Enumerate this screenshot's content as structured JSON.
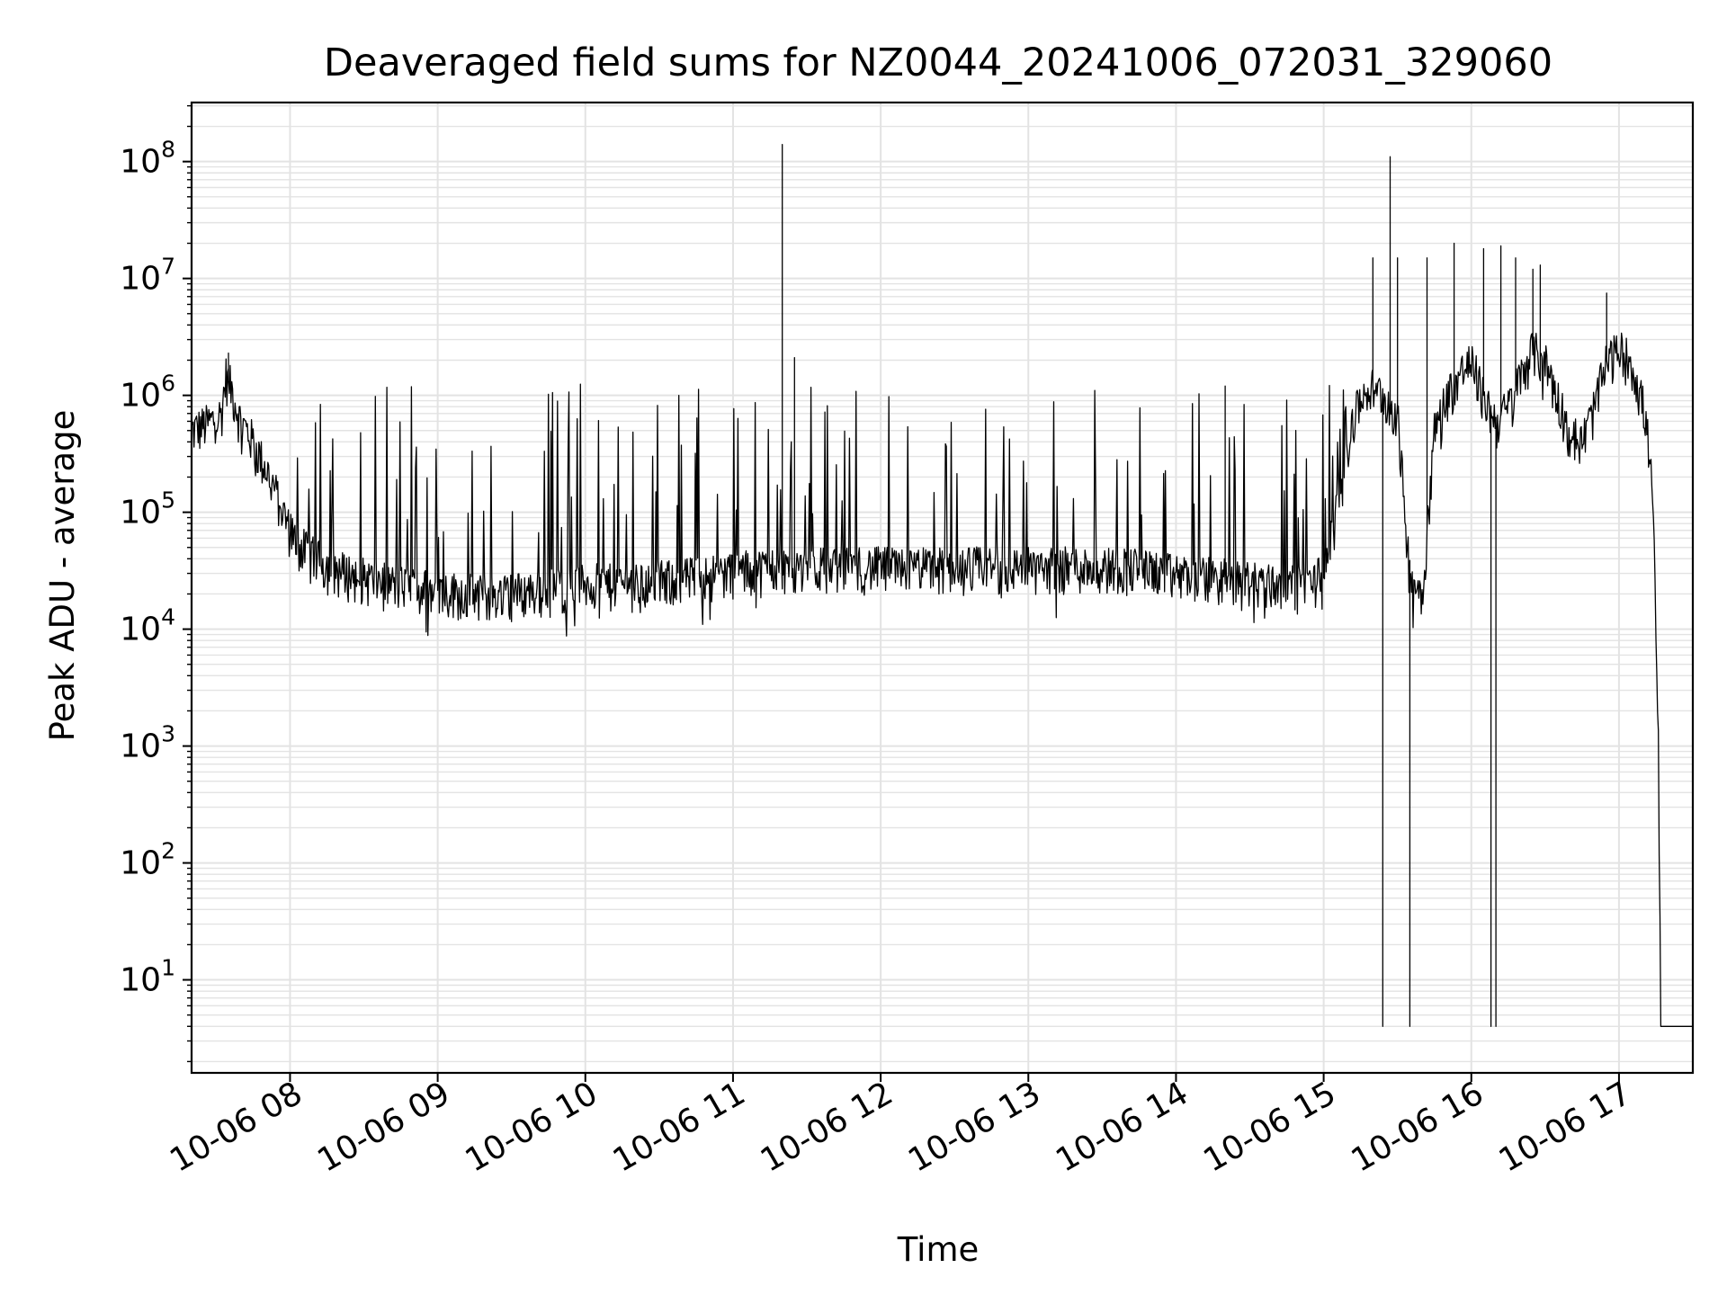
{
  "chart_data": {
    "type": "line",
    "title": "Deaveraged field sums for NZ0044_20241006_072031_329060",
    "xlabel": "Time",
    "ylabel": "Peak ADU - average",
    "xscale": "time",
    "yscale": "log",
    "grid": true,
    "legend": "none",
    "colors": {
      "line": "#000000",
      "grid": "#e3e3e3",
      "axes": "#000000"
    },
    "xlim": [
      "2024-10-06 07:20",
      "2024-10-06 17:30"
    ],
    "ylim": [
      1.6,
      320000000
    ],
    "x_tick_labels": [
      "10-06 08",
      "10-06 09",
      "10-06 10",
      "10-06 11",
      "10-06 12",
      "10-06 13",
      "10-06 14",
      "10-06 15",
      "10-06 16",
      "10-06 17"
    ],
    "x_ticks": [
      "2024-10-06 08:00",
      "2024-10-06 09:00",
      "2024-10-06 10:00",
      "2024-10-06 11:00",
      "2024-10-06 12:00",
      "2024-10-06 13:00",
      "2024-10-06 14:00",
      "2024-10-06 15:00",
      "2024-10-06 16:00",
      "2024-10-06 17:00"
    ],
    "y_ticks": [
      {
        "value": 10,
        "base": "10",
        "exp": "1"
      },
      {
        "value": 100,
        "base": "10",
        "exp": "2"
      },
      {
        "value": 1000,
        "base": "10",
        "exp": "3"
      },
      {
        "value": 10000,
        "base": "10",
        "exp": "4"
      },
      {
        "value": 100000,
        "base": "10",
        "exp": "5"
      },
      {
        "value": 1000000,
        "base": "10",
        "exp": "6"
      },
      {
        "value": 10000000,
        "base": "10",
        "exp": "7"
      },
      {
        "value": 100000000,
        "base": "10",
        "exp": "8"
      }
    ],
    "series": [
      {
        "x": [
          "2024-10-06 07:20",
          "2024-10-06 07:24",
          "2024-10-06 07:28",
          "2024-10-06 07:32",
          "2024-10-06 07:34",
          "2024-10-06 07:36",
          "2024-10-06 07:40",
          "2024-10-06 07:44",
          "2024-10-06 07:48",
          "2024-10-06 07:52",
          "2024-10-06 07:56",
          "2024-10-06 08:00",
          "2024-10-06 08:03",
          "2024-10-06 08:08",
          "2024-10-06 08:15",
          "2024-10-06 08:25",
          "2024-10-06 08:40",
          "2024-10-06 09:00",
          "2024-10-06 09:20",
          "2024-10-06 09:40",
          "2024-10-06 10:00",
          "2024-10-06 10:20",
          "2024-10-06 10:40",
          "2024-10-06 11:00",
          "2024-10-06 11:20",
          "2024-10-06 11:40",
          "2024-10-06 12:00",
          "2024-10-06 12:20",
          "2024-10-06 12:40",
          "2024-10-06 13:00",
          "2024-10-06 13:20",
          "2024-10-06 13:40",
          "2024-10-06 14:00",
          "2024-10-06 14:20",
          "2024-10-06 14:40",
          "2024-10-06 14:50",
          "2024-10-06 15:00",
          "2024-10-06 15:05",
          "2024-10-06 15:10",
          "2024-10-06 15:15",
          "2024-10-06 15:20",
          "2024-10-06 15:25",
          "2024-10-06 15:30",
          "2024-10-06 15:35",
          "2024-10-06 15:40",
          "2024-10-06 15:45",
          "2024-10-06 15:50",
          "2024-10-06 15:55",
          "2024-10-06 16:00",
          "2024-10-06 16:05",
          "2024-10-06 16:10",
          "2024-10-06 16:15",
          "2024-10-06 16:20",
          "2024-10-06 16:25",
          "2024-10-06 16:30",
          "2024-10-06 16:35",
          "2024-10-06 16:40",
          "2024-10-06 16:45",
          "2024-10-06 16:50",
          "2024-10-06 16:55",
          "2024-10-06 17:00",
          "2024-10-06 17:05",
          "2024-10-06 17:10",
          "2024-10-06 17:12",
          "2024-10-06 17:14",
          "2024-10-06 17:16",
          "2024-10-06 17:17",
          "2024-10-06 17:20",
          "2024-10-06 17:30"
        ],
        "y": [
          500000,
          550000,
          600000,
          700000,
          1500000,
          1200000,
          600000,
          450000,
          300000,
          200000,
          120000,
          70000,
          55000,
          45000,
          35000,
          30000,
          25000,
          22000,
          20000,
          22000,
          25000,
          25000,
          28000,
          32000,
          35000,
          35000,
          35000,
          35000,
          35000,
          35000,
          35000,
          35000,
          30000,
          28000,
          25000,
          24000,
          30000,
          100000,
          400000,
          1000000,
          1200000,
          1000000,
          700000,
          30000,
          20000,
          500000,
          1000000,
          1500000,
          2000000,
          1000000,
          600000,
          800000,
          1500000,
          2500000,
          2000000,
          1000000,
          500000,
          400000,
          800000,
          2000000,
          2500000,
          2000000,
          800000,
          400000,
          100000,
          1000,
          4,
          4,
          4
        ],
        "spikes": [
          {
            "x": "2024-10-06 07:35",
            "y": 2300000
          },
          {
            "x": "2024-10-06 11:20",
            "y": 140000000
          },
          {
            "x": "2024-10-06 11:25",
            "y": 2100000
          },
          {
            "x": "2024-10-06 14:20",
            "y": 1200000
          },
          {
            "x": "2024-10-06 15:20",
            "y": 15000000
          },
          {
            "x": "2024-10-06 15:24",
            "y": 4
          },
          {
            "x": "2024-10-06 15:27",
            "y": 110000000
          },
          {
            "x": "2024-10-06 15:30",
            "y": 15000000
          },
          {
            "x": "2024-10-06 15:35",
            "y": 4
          },
          {
            "x": "2024-10-06 15:42",
            "y": 15000000
          },
          {
            "x": "2024-10-06 15:53",
            "y": 20000000
          },
          {
            "x": "2024-10-06 16:05",
            "y": 18000000
          },
          {
            "x": "2024-10-06 16:08",
            "y": 4
          },
          {
            "x": "2024-10-06 16:10",
            "y": 4
          },
          {
            "x": "2024-10-06 16:12",
            "y": 19000000
          },
          {
            "x": "2024-10-06 16:18",
            "y": 15000000
          },
          {
            "x": "2024-10-06 16:25",
            "y": 12000000
          },
          {
            "x": "2024-10-06 16:28",
            "y": 13000000
          },
          {
            "x": "2024-10-06 16:55",
            "y": 7500000
          }
        ],
        "noise": {
          "start": "2024-10-06 08:00",
          "end": "2024-10-06 15:12",
          "spike_max": 1300000,
          "dip_factor": 0.65
        }
      }
    ]
  }
}
